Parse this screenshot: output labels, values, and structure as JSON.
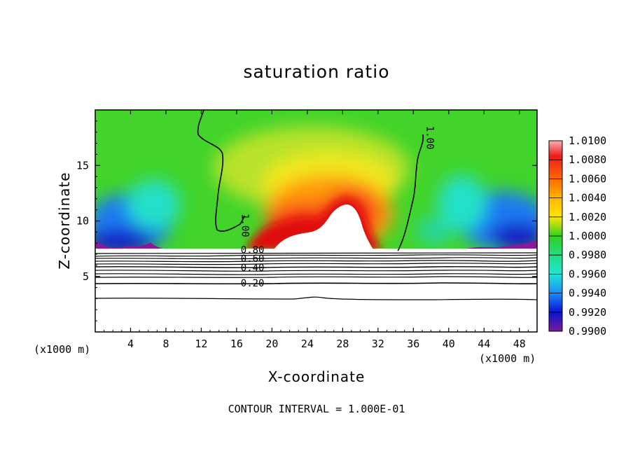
{
  "chart_data": {
    "type": "heatmap",
    "title": "saturation ratio",
    "xlabel": "X-coordinate",
    "ylabel": "Z-coordinate",
    "x_unit": "(x1000 m)",
    "x_ticks": [
      4,
      8,
      12,
      16,
      20,
      24,
      28,
      32,
      36,
      40,
      44,
      48
    ],
    "y_ticks": [
      5,
      10,
      15
    ],
    "xlim": [
      0,
      50
    ],
    "ylim": [
      0,
      20
    ],
    "colorbar": {
      "ticks": [
        "1.0100",
        "1.0080",
        "1.0060",
        "1.0040",
        "1.0020",
        "1.0000",
        "0.9980",
        "0.9960",
        "0.9940",
        "0.9920",
        "0.9900"
      ],
      "range": [
        0.99,
        1.01
      ]
    },
    "contour_labels": [
      {
        "text": "1.00",
        "x": 16.6,
        "z": 9.6,
        "rotate": 90
      },
      {
        "text": "1.00",
        "x": 37.5,
        "z": 17.5,
        "rotate": 90
      },
      {
        "text": "0.80",
        "x": 17.8,
        "z": 7.1,
        "rotate": 0
      },
      {
        "text": "0.60",
        "x": 17.8,
        "z": 6.3,
        "rotate": 0
      },
      {
        "text": "0.40",
        "x": 17.8,
        "z": 5.5,
        "rotate": 0
      },
      {
        "text": "0.20",
        "x": 17.8,
        "z": 4.1,
        "rotate": 0
      }
    ],
    "note": "CONTOUR INTERVAL = 1.000E-01"
  }
}
